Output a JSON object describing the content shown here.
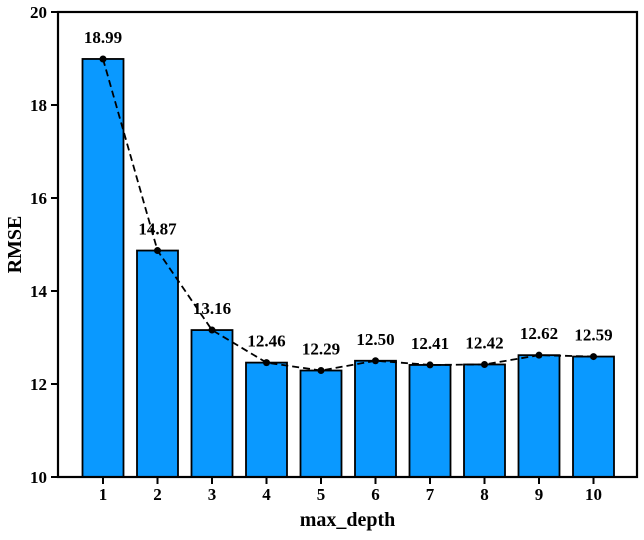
{
  "figure": {
    "background_color": "#ffffff"
  },
  "chart_data": {
    "type": "bar",
    "overlay": "dashed-line-with-markers",
    "title": "",
    "xlabel": "max_depth",
    "ylabel": "RMSE",
    "categories": [
      "1",
      "2",
      "3",
      "4",
      "5",
      "6",
      "7",
      "8",
      "9",
      "10"
    ],
    "values": [
      18.99,
      14.87,
      13.16,
      12.46,
      12.29,
      12.5,
      12.41,
      12.42,
      12.62,
      12.59
    ],
    "value_labels": [
      "18.99",
      "14.87",
      "13.16",
      "12.46",
      "12.29",
      "12.50",
      "12.41",
      "12.42",
      "12.62",
      "12.59"
    ],
    "highlight": {
      "index": 4,
      "label": "12.29",
      "color": "#ff0000"
    },
    "ylim": [
      10,
      20
    ],
    "yticks": [
      "10",
      "12",
      "14",
      "16",
      "18",
      "20"
    ],
    "ytick_values": [
      10,
      12,
      14,
      16,
      18,
      20
    ],
    "grid": false,
    "legend": null,
    "colors": {
      "bar_fill": "#0a99ff",
      "bar_edge": "#000000",
      "line": "#000000",
      "marker": "#000000",
      "label": "#000000",
      "axis": "#000000"
    }
  }
}
